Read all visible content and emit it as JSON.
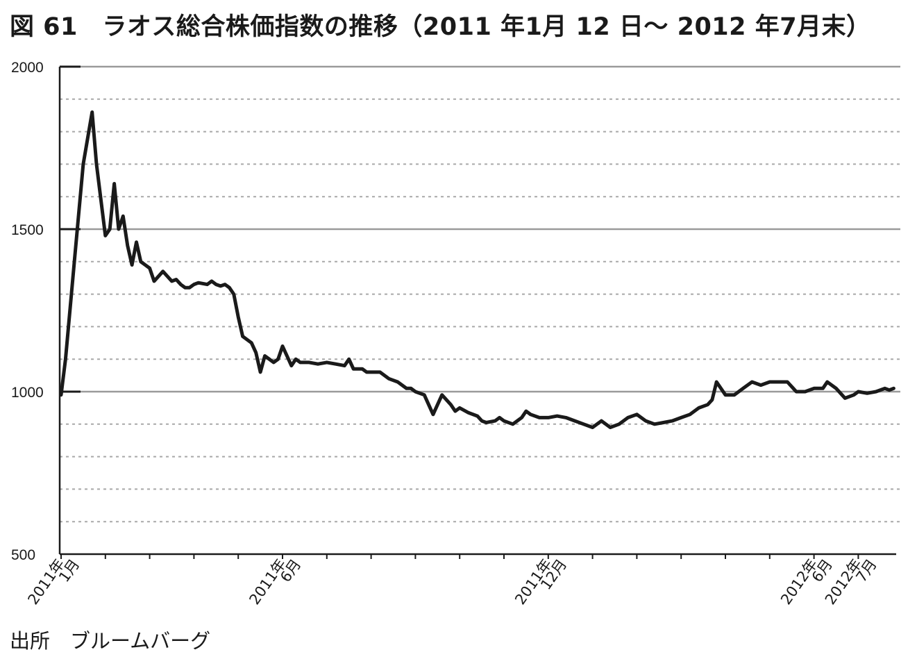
{
  "title": "図 61　ラオス総合株価指数の推移（2011 年1月 12 日～ 2012 年7月末）",
  "source": "出所　ブルームバーグ",
  "chart_data": {
    "type": "line",
    "title": "図 61　ラオス総合株価指数の推移（2011 年1月 12 日～ 2012 年7月末）",
    "xlabel": "",
    "ylabel": "",
    "ylim": [
      500,
      2000
    ],
    "yticks": [
      500,
      1000,
      1500,
      2000
    ],
    "yticks_labels": [
      "500",
      "1000",
      "1500",
      "2000"
    ],
    "x_range": [
      "2011-01",
      "2012-07"
    ],
    "x_tick_months": 19,
    "x_labels": [
      {
        "month": 0,
        "line1": "2011年",
        "line2": "1月"
      },
      {
        "month": 5,
        "line1": "2011年",
        "line2": "6月"
      },
      {
        "month": 11,
        "line1": "2011年",
        "line2": "12月"
      },
      {
        "month": 17,
        "line1": "2012年",
        "line2": "6月"
      },
      {
        "month": 18,
        "line1": "2012年",
        "line2": "7月"
      }
    ],
    "grid": {
      "major_solid": [
        1000,
        1500,
        2000
      ],
      "minor_dashed_step": 100
    },
    "series": [
      {
        "color": "#1a1a1a",
        "x_months": [
          0.0,
          0.1,
          0.3,
          0.5,
          0.7,
          0.8,
          1.0,
          1.1,
          1.2,
          1.3,
          1.4,
          1.5,
          1.6,
          1.7,
          1.8,
          1.9,
          2.0,
          2.1,
          2.3,
          2.5,
          2.6,
          2.7,
          2.8,
          2.9,
          3.0,
          3.1,
          3.3,
          3.4,
          3.5,
          3.6,
          3.7,
          3.8,
          3.9,
          4.0,
          4.1,
          4.2,
          4.3,
          4.4,
          4.5,
          4.6,
          4.7,
          4.8,
          4.9,
          5.0,
          5.1,
          5.2,
          5.3,
          5.4,
          5.6,
          5.8,
          6.0,
          6.2,
          6.4,
          6.5,
          6.6,
          6.8,
          6.9,
          7.0,
          7.2,
          7.4,
          7.6,
          7.8,
          7.9,
          8.0,
          8.2,
          8.4,
          8.6,
          8.8,
          8.9,
          9.0,
          9.2,
          9.4,
          9.5,
          9.6,
          9.8,
          9.9,
          10.0,
          10.2,
          10.4,
          10.5,
          10.6,
          10.8,
          11.0,
          11.2,
          11.4,
          11.6,
          11.8,
          12.0,
          12.2,
          12.4,
          12.6,
          12.8,
          13.0,
          13.2,
          13.4,
          13.6,
          13.8,
          14.0,
          14.2,
          14.4,
          14.6,
          14.7,
          14.8,
          15.0,
          15.2,
          15.4,
          15.6,
          15.8,
          16.0,
          16.2,
          16.4,
          16.6,
          16.8,
          17.0,
          17.2,
          17.3,
          17.5,
          17.7,
          17.9,
          18.0,
          18.2,
          18.4,
          18.6,
          18.7,
          18.8
        ],
        "values": [
          990,
          1100,
          1400,
          1700,
          1860,
          1700,
          1480,
          1500,
          1640,
          1500,
          1540,
          1450,
          1390,
          1460,
          1400,
          1390,
          1380,
          1340,
          1370,
          1340,
          1345,
          1330,
          1320,
          1320,
          1330,
          1335,
          1330,
          1340,
          1330,
          1325,
          1330,
          1320,
          1300,
          1230,
          1170,
          1160,
          1150,
          1120,
          1060,
          1110,
          1100,
          1090,
          1100,
          1140,
          1110,
          1080,
          1100,
          1090,
          1090,
          1085,
          1090,
          1085,
          1080,
          1100,
          1070,
          1070,
          1060,
          1060,
          1060,
          1040,
          1030,
          1010,
          1010,
          1000,
          990,
          930,
          990,
          960,
          940,
          950,
          935,
          925,
          910,
          905,
          910,
          920,
          910,
          900,
          920,
          940,
          930,
          920,
          920,
          925,
          920,
          910,
          900,
          890,
          910,
          890,
          900,
          920,
          930,
          910,
          900,
          905,
          910,
          920,
          930,
          950,
          960,
          975,
          1030,
          990,
          990,
          1010,
          1030,
          1020,
          1030,
          1030,
          1030,
          1000,
          1000,
          1010,
          1010,
          1030,
          1010,
          980,
          990,
          1000,
          995,
          1000,
          1010,
          1005,
          1010
        ]
      }
    ]
  }
}
